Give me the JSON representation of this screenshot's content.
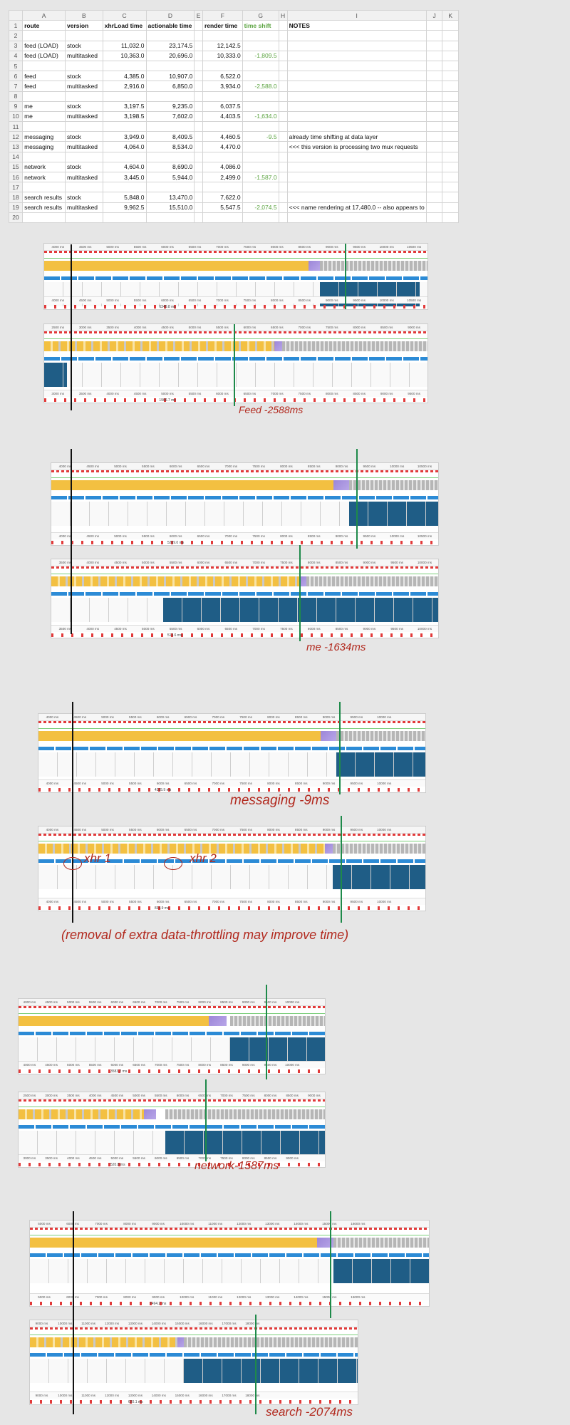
{
  "sheet": {
    "columns": [
      "",
      "A",
      "B",
      "C",
      "D",
      "E",
      "F",
      "G",
      "H",
      "I",
      "J",
      "K"
    ],
    "header": {
      "route": "route",
      "version": "version",
      "xhr": "xhrLoad time",
      "actionable": "actionable time",
      "render": "render time",
      "shift": "time shift",
      "notes": "NOTES"
    },
    "rows": [
      {
        "n": "1",
        "a": "route",
        "b": "version",
        "c": "xhrLoad time",
        "d": "actionable time",
        "f": "render time",
        "g": "time shift",
        "i": "NOTES"
      },
      {
        "n": "2"
      },
      {
        "n": "3",
        "a": "feed (LOAD)",
        "b": "stock",
        "c": "11,032.0",
        "d": "23,174.5",
        "f": "12,142.5"
      },
      {
        "n": "4",
        "a": "feed (LOAD)",
        "b": "multitasked",
        "c": "10,363.0",
        "d": "20,696.0",
        "f": "10,333.0",
        "g": "-1,809.5"
      },
      {
        "n": "5"
      },
      {
        "n": "6",
        "a": "feed",
        "b": "stock",
        "c": "4,385.0",
        "d": "10,907.0",
        "f": "6,522.0"
      },
      {
        "n": "7",
        "a": "feed",
        "b": "multitasked",
        "c": "2,916.0",
        "d": "6,850.0",
        "f": "3,934.0",
        "g": "-2,588.0"
      },
      {
        "n": "8"
      },
      {
        "n": "9",
        "a": "me",
        "b": "stock",
        "c": "3,197.5",
        "d": "9,235.0",
        "f": "6,037.5"
      },
      {
        "n": "10",
        "a": "me",
        "b": "multitasked",
        "c": "3,198.5",
        "d": "7,602.0",
        "f": "4,403.5",
        "g": "-1,634.0"
      },
      {
        "n": "11"
      },
      {
        "n": "12",
        "a": "messaging",
        "b": "stock",
        "c": "3,949.0",
        "d": "8,409.5",
        "f": "4,460.5",
        "g": "-9.5",
        "i": "already time shifting at data layer"
      },
      {
        "n": "13",
        "a": "messaging",
        "b": "multitasked",
        "c": "4,064.0",
        "d": "8,534.0",
        "f": "4,470.0",
        "i": "<<< this version is processing two mux requests"
      },
      {
        "n": "14"
      },
      {
        "n": "15",
        "a": "network",
        "b": "stock",
        "c": "4,604.0",
        "d": "8,690.0",
        "f": "4,086.0"
      },
      {
        "n": "16",
        "a": "network",
        "b": "multitasked",
        "c": "3,445.0",
        "d": "5,944.0",
        "f": "2,499.0",
        "g": "-1,587.0"
      },
      {
        "n": "17"
      },
      {
        "n": "18",
        "a": "search results",
        "b": "stock",
        "c": "5,848.0",
        "d": "13,470.0",
        "f": "7,622.0"
      },
      {
        "n": "19",
        "a": "search results",
        "b": "multitasked",
        "c": "9,962.5",
        "d": "15,510.0",
        "f": "5,547.5",
        "g": "-2,074.5",
        "i": "<<< name rendering at 17,480.0 -- also appears to"
      },
      {
        "n": "20"
      }
    ]
  },
  "captions": {
    "feed": "Feed -2588ms",
    "me": "me -1634ms",
    "messaging": "messaging -9ms",
    "xhr1": "xhr 1",
    "xhr2": "xhr 2",
    "throttle": "(removal of extra data-throttling may improve time)",
    "network": "network-1587ms",
    "search": "search -2074ms"
  },
  "strips": [
    {
      "id": "feed-stock",
      "ruler": [
        "4000 ms",
        "4500 ms",
        "5000 ms",
        "5500 ms",
        "6000 ms",
        "6500 ms",
        "7000 ms",
        "7500 ms",
        "8000 ms",
        "8500 ms",
        "9000 ms",
        "9500 ms",
        "10000 ms",
        "10500 ms"
      ],
      "bottom": [
        "4000 ms",
        "4500 ms",
        "5000 ms",
        "5500 ms",
        "6000 ms",
        "6500 ms",
        "7000 ms",
        "7500 ms",
        "8000 ms",
        "8500 ms",
        "9000 ms",
        "9500 ms",
        "10000 ms",
        "10500 ms"
      ],
      "dur": "6349.8 ms"
    },
    {
      "id": "feed-multi",
      "ruler": [
        "2500 ms",
        "3000 ms",
        "3500 ms",
        "4000 ms",
        "4500 ms",
        "5000 ms",
        "5500 ms",
        "6000 ms",
        "6500 ms",
        "7000 ms",
        "7500 ms",
        "8000 ms",
        "8500 ms",
        "9000 ms"
      ],
      "bottom": [
        "3000 ms",
        "3500 ms",
        "4000 ms",
        "4500 ms",
        "5000 ms",
        "5500 ms",
        "6000 ms",
        "6500 ms",
        "7000 ms",
        "7500 ms",
        "8000 ms",
        "8500 ms",
        "9000 ms",
        "9500 ms"
      ],
      "dur": "1966.7 ms"
    },
    {
      "id": "me-stock",
      "ruler": [
        "4000 ms",
        "4500 ms",
        "5000 ms",
        "5500 ms",
        "6000 ms",
        "6500 ms",
        "7000 ms",
        "7500 ms",
        "8000 ms",
        "8500 ms",
        "9000 ms",
        "9500 ms",
        "10000 ms",
        "10500 ms"
      ],
      "bottom": [
        "4000 ms",
        "4500 ms",
        "5000 ms",
        "5500 ms",
        "6000 ms",
        "6500 ms",
        "7000 ms",
        "7500 ms",
        "8000 ms",
        "8500 ms",
        "9000 ms",
        "9500 ms",
        "10000 ms",
        "10500 ms"
      ],
      "dur": "5269.0 ms"
    },
    {
      "id": "me-multi",
      "ruler": [
        "3500 ms",
        "4000 ms",
        "4500 ms",
        "5000 ms",
        "5500 ms",
        "6000 ms",
        "6500 ms",
        "7000 ms",
        "7500 ms",
        "8000 ms",
        "8500 ms",
        "9000 ms",
        "9500 ms",
        "10000 ms"
      ],
      "bottom": [
        "3500 ms",
        "4000 ms",
        "4500 ms",
        "5000 ms",
        "5500 ms",
        "6000 ms",
        "6500 ms",
        "7000 ms",
        "7500 ms",
        "8000 ms",
        "8500 ms",
        "9000 ms",
        "9500 ms",
        "10000 ms"
      ],
      "dur": "513.6 ms"
    },
    {
      "id": "msg-stock",
      "ruler": [
        "4000 ms",
        "4500 ms",
        "5000 ms",
        "5500 ms",
        "6000 ms",
        "6500 ms",
        "7000 ms",
        "7500 ms",
        "8000 ms",
        "8500 ms",
        "9000 ms",
        "9500 ms",
        "10000 ms",
        ""
      ],
      "bottom": [
        "4000 ms",
        "4500 ms",
        "5000 ms",
        "5500 ms",
        "6000 ms",
        "6500 ms",
        "7000 ms",
        "7500 ms",
        "8000 ms",
        "8500 ms",
        "9000 ms",
        "9500 ms",
        "10000 ms",
        ""
      ],
      "dur": "4325.9 ms"
    },
    {
      "id": "msg-multi",
      "ruler": [
        "4000 ms",
        "4500 ms",
        "5000 ms",
        "5500 ms",
        "6000 ms",
        "6500 ms",
        "7000 ms",
        "7500 ms",
        "8000 ms",
        "8500 ms",
        "9000 ms",
        "9500 ms",
        "10000 ms",
        ""
      ],
      "bottom": [
        "4000 ms",
        "4500 ms",
        "5000 ms",
        "5500 ms",
        "6000 ms",
        "6500 ms",
        "7000 ms",
        "7500 ms",
        "8000 ms",
        "8500 ms",
        "9000 ms",
        "9500 ms",
        "10000 ms",
        ""
      ],
      "dur": "834.9 ms"
    },
    {
      "id": "net-stock",
      "ruler": [
        "4000 ms",
        "4500 ms",
        "5000 ms",
        "5500 ms",
        "6000 ms",
        "6500 ms",
        "7000 ms",
        "7500 ms",
        "8000 ms",
        "8500 ms",
        "9000 ms",
        "9500 ms",
        "10000 ms",
        ""
      ],
      "bottom": [
        "4000 ms",
        "4500 ms",
        "5000 ms",
        "5500 ms",
        "6000 ms",
        "6500 ms",
        "7000 ms",
        "7500 ms",
        "8000 ms",
        "8500 ms",
        "9000 ms",
        "9500 ms",
        "10000 ms",
        ""
      ],
      "dur": "3583.2 ms"
    },
    {
      "id": "net-multi",
      "ruler": [
        "2500 ms",
        "3000 ms",
        "3500 ms",
        "4000 ms",
        "4500 ms",
        "5000 ms",
        "5500 ms",
        "6000 ms",
        "6500 ms",
        "7000 ms",
        "7500 ms",
        "8000 ms",
        "8500 ms",
        "9000 ms"
      ],
      "bottom": [
        "3000 ms",
        "3500 ms",
        "4000 ms",
        "4500 ms",
        "5000 ms",
        "5500 ms",
        "6000 ms",
        "6500 ms",
        "7000 ms",
        "7500 ms",
        "8000 ms",
        "8500 ms",
        "9000 ms",
        ""
      ],
      "dur": "520.8 ms"
    },
    {
      "id": "search-stock",
      "ruler": [
        "5000 ms",
        "6000 ms",
        "7000 ms",
        "8000 ms",
        "9000 ms",
        "10000 ms",
        "11000 ms",
        "12000 ms",
        "13000 ms",
        "14000 ms",
        "15000 ms",
        "16000 ms",
        "",
        ""
      ],
      "bottom": [
        "5000 ms",
        "6000 ms",
        "7000 ms",
        "8000 ms",
        "9000 ms",
        "10000 ms",
        "11000 ms",
        "12000 ms",
        "13000 ms",
        "14000 ms",
        "15000 ms",
        "16000 ms",
        "",
        ""
      ],
      "dur": "7494.2 ms"
    },
    {
      "id": "search-multi",
      "ruler": [
        "9000 ms",
        "10000 ms",
        "11000 ms",
        "12000 ms",
        "13000 ms",
        "14000 ms",
        "15000 ms",
        "16000 ms",
        "17000 ms",
        "18000 ms",
        "",
        "",
        "",
        ""
      ],
      "bottom": [
        "9000 ms",
        "10000 ms",
        "11000 ms",
        "12000 ms",
        "13000 ms",
        "14000 ms",
        "15000 ms",
        "16000 ms",
        "17000 ms",
        "18000 ms",
        "",
        "",
        "",
        ""
      ],
      "dur": "620.1 ms"
    }
  ]
}
